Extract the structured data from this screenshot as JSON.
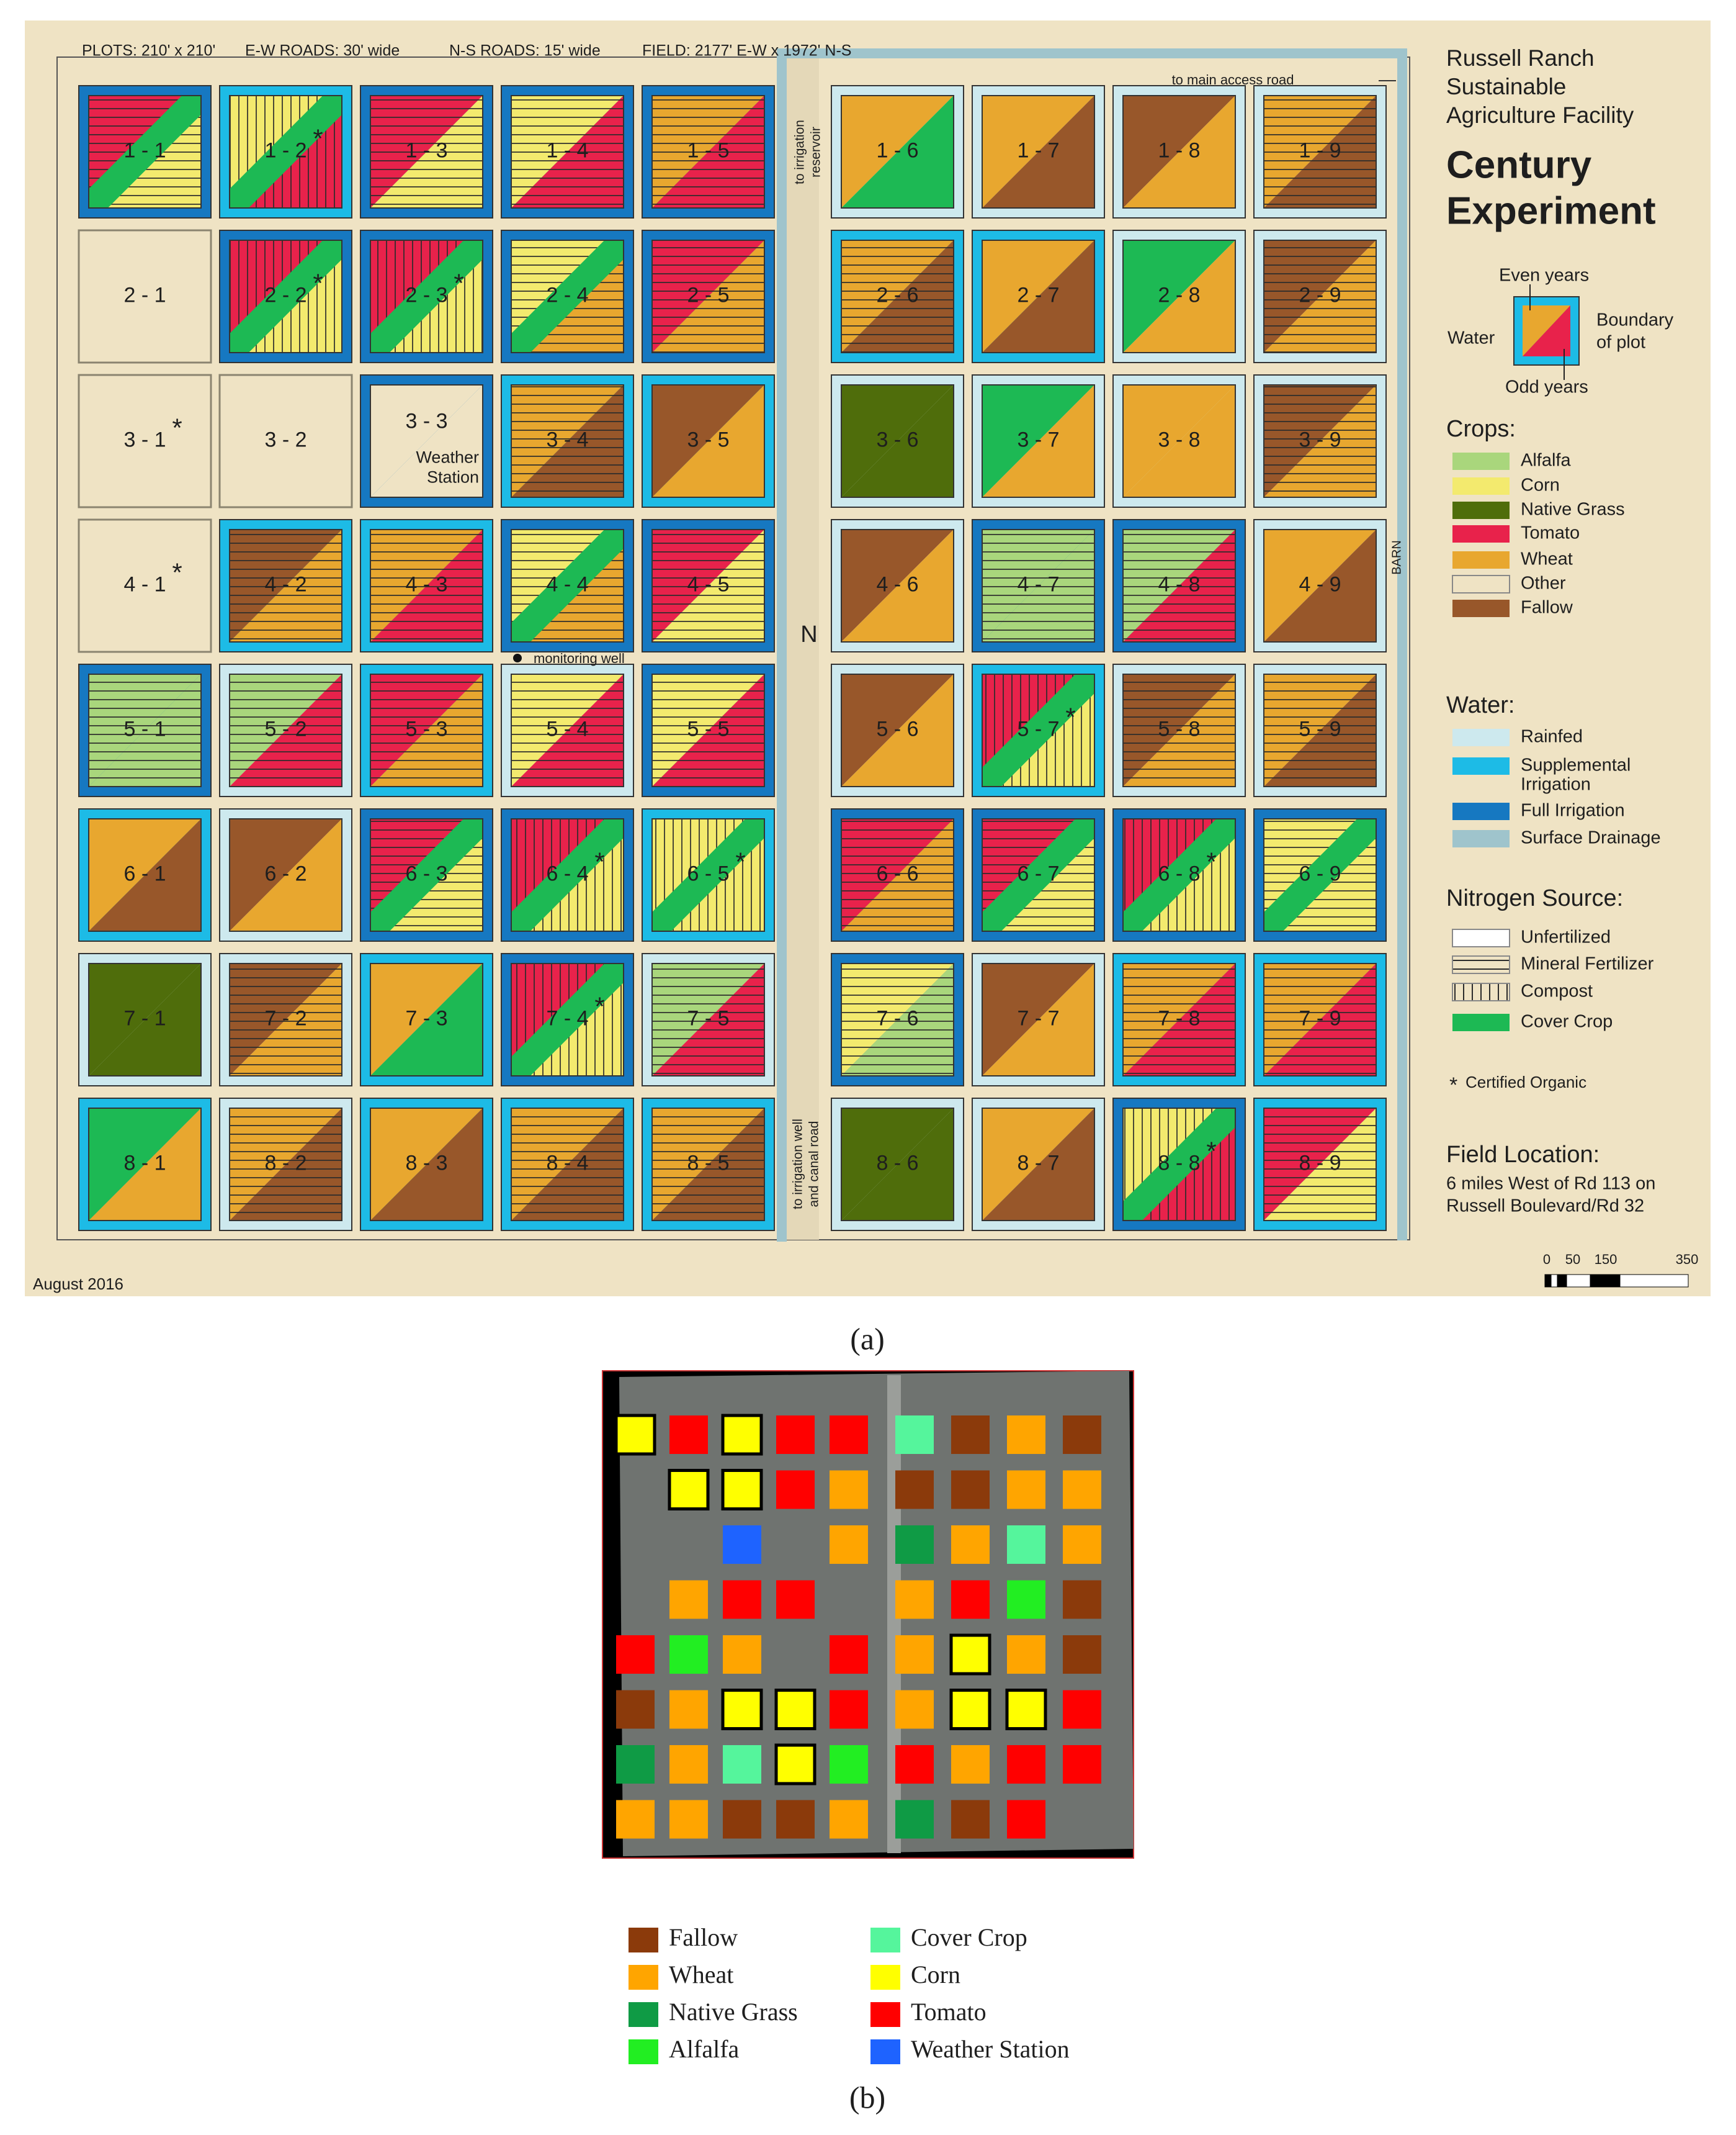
{
  "panel_a": {
    "header": [
      "PLOTS: 210' x 210'",
      "E-W ROADS: 30' wide",
      "N-S ROADS: 15' wide",
      "FIELD: 2177' E-W x 1972' N-S"
    ],
    "title": [
      "Russell Ranch",
      "Sustainable",
      "Agriculture Facility"
    ],
    "experiment": [
      "Century",
      "Experiment"
    ],
    "key": {
      "even": "Even years",
      "water": "Water",
      "boundary": [
        "Boundary",
        "of plot"
      ],
      "odd": "Odd years"
    },
    "crops": {
      "title": "Crops:",
      "items": [
        {
          "name": "Alfalfa",
          "color": "#a9d67c"
        },
        {
          "name": "Corn",
          "color": "#f3ea6e"
        },
        {
          "name": "Native Grass",
          "color": "#4f6d0b"
        },
        {
          "name": "Tomato",
          "color": "#e8224b"
        },
        {
          "name": "Wheat",
          "color": "#e8a72f"
        },
        {
          "name": "Other",
          "color": "#efe3c4"
        },
        {
          "name": "Fallow",
          "color": "#98572a"
        }
      ]
    },
    "water": {
      "title": "Water:",
      "items": [
        {
          "name": "Rainfed",
          "color": "#cde9ee"
        },
        {
          "name": [
            "Supplemental",
            "Irrigation"
          ],
          "color": "#1dbbe6"
        },
        {
          "name": "Full Irrigation",
          "color": "#1678c1"
        },
        {
          "name": "Surface Drainage",
          "color": "#9fc4cc"
        }
      ]
    },
    "nitrogen": {
      "title": "Nitrogen Source:",
      "items": [
        {
          "name": "Unfertilized",
          "color": "#ffffff"
        },
        {
          "name": "Mineral Fertilizer",
          "pattern": "horizontal"
        },
        {
          "name": "Compost",
          "pattern": "vertical"
        },
        {
          "name": "Cover Crop",
          "color": "#1db954"
        }
      ]
    },
    "organic": {
      "mark": "*",
      "text": "Certified Organic"
    },
    "location": {
      "title": "Field Location:",
      "lines": [
        "6 miles West of Rd 113 on",
        "Russell Boulevard/Rd 32"
      ]
    },
    "annotations": {
      "reservoir": [
        "to irrigation",
        "reservoir"
      ],
      "access": "to main access road",
      "north": "N",
      "well": "monitoring well",
      "barn": "BARN",
      "canal": [
        "to irrigation well",
        "and canal road"
      ],
      "date": "August 2016"
    },
    "scale": [
      0,
      50,
      150,
      350
    ],
    "plots": [
      [
        "1 - 1",
        null,
        "Tomato",
        "Corn",
        "Full Irrigation",
        "Mineral Fertilizer",
        true
      ],
      [
        "1 - 2",
        "*",
        "Corn",
        "Tomato",
        "Supplemental Irrigation",
        "Compost",
        true
      ],
      [
        "1 - 3",
        null,
        "Tomato",
        "Corn",
        "Full Irrigation",
        "Mineral Fertilizer",
        false
      ],
      [
        "1 - 4",
        null,
        "Corn",
        "Tomato",
        "Full Irrigation",
        "Mineral Fertilizer",
        false
      ],
      [
        "1 - 5",
        null,
        "Wheat",
        "Tomato",
        "Full Irrigation",
        "Mineral Fertilizer",
        false
      ],
      [
        "1 - 6",
        null,
        "Wheat",
        "Cover Crop",
        "Rainfed",
        null,
        false
      ],
      [
        "1 - 7",
        null,
        "Wheat",
        "Fallow",
        "Rainfed",
        null,
        false
      ],
      [
        "1 - 8",
        null,
        "Fallow",
        "Wheat",
        "Rainfed",
        null,
        false
      ],
      [
        "1 - 9",
        null,
        "Wheat",
        "Fallow",
        "Rainfed",
        "Mineral Fertilizer",
        false
      ],
      [
        "2 - 1",
        null,
        "Other",
        "Other",
        null,
        null,
        false
      ],
      [
        "2 - 2",
        "*",
        "Tomato",
        "Corn",
        "Full Irrigation",
        "Compost",
        true
      ],
      [
        "2 - 3",
        "*",
        "Tomato",
        "Corn",
        "Full Irrigation",
        "Compost",
        true
      ],
      [
        "2 - 4",
        null,
        "Corn",
        "Wheat",
        "Full Irrigation",
        "Mineral Fertilizer",
        true
      ],
      [
        "2 - 5",
        null,
        "Tomato",
        "Wheat",
        "Full Irrigation",
        "Mineral Fertilizer",
        false
      ],
      [
        "2 - 6",
        null,
        "Wheat",
        "Fallow",
        "Supplemental Irrigation",
        "Mineral Fertilizer",
        false
      ],
      [
        "2 - 7",
        null,
        "Wheat",
        "Fallow",
        "Supplemental Irrigation",
        null,
        false
      ],
      [
        "2 - 8",
        null,
        "Cover Crop",
        "Wheat",
        "Rainfed",
        null,
        false
      ],
      [
        "2 - 9",
        null,
        "Fallow",
        "Wheat",
        "Rainfed",
        "Mineral Fertilizer",
        false
      ],
      [
        "3 - 1",
        "*",
        "Other",
        "Other",
        null,
        null,
        false
      ],
      [
        "3 - 2",
        null,
        "Other",
        "Other",
        null,
        null,
        false
      ],
      [
        "3 - 3",
        null,
        "Other",
        "Other",
        "Full Irrigation",
        null,
        false,
        [
          "Weather",
          "Station"
        ]
      ],
      [
        "3 - 4",
        null,
        "Wheat",
        "Fallow",
        "Supplemental Irrigation",
        "Mineral Fertilizer",
        false
      ],
      [
        "3 - 5",
        null,
        "Fallow",
        "Wheat",
        "Supplemental Irrigation",
        null,
        false
      ],
      [
        "3 - 6",
        null,
        "Native Grass",
        "Native Grass",
        "Rainfed",
        null,
        false
      ],
      [
        "3 - 7",
        null,
        "Cover Crop",
        "Wheat",
        "Rainfed",
        null,
        false
      ],
      [
        "3 - 8",
        null,
        "Wheat",
        "Wheat",
        "Rainfed",
        null,
        false
      ],
      [
        "3 - 9",
        null,
        "Fallow",
        "Wheat",
        "Rainfed",
        "Mineral Fertilizer",
        false
      ],
      [
        "4 - 1",
        "*",
        "Other",
        "Other",
        null,
        null,
        false
      ],
      [
        "4 - 2",
        null,
        "Fallow",
        "Wheat",
        "Supplemental Irrigation",
        "Mineral Fertilizer",
        false
      ],
      [
        "4 - 3",
        null,
        "Wheat",
        "Tomato",
        "Supplemental Irrigation",
        "Mineral Fertilizer",
        false
      ],
      [
        "4 - 4",
        null,
        "Corn",
        "Wheat",
        "Full Irrigation",
        "Mineral Fertilizer",
        true
      ],
      [
        "4 - 5",
        null,
        "Tomato",
        "Corn",
        "Full Irrigation",
        "Mineral Fertilizer",
        false
      ],
      [
        "4 - 6",
        null,
        "Fallow",
        "Wheat",
        "Rainfed",
        null,
        false
      ],
      [
        "4 - 7",
        null,
        "Alfalfa",
        "Alfalfa",
        "Full Irrigation",
        "Mineral Fertilizer",
        false
      ],
      [
        "4 - 8",
        null,
        "Alfalfa",
        "Tomato",
        "Full Irrigation",
        "Mineral Fertilizer",
        false
      ],
      [
        "4 - 9",
        null,
        "Wheat",
        "Fallow",
        "Rainfed",
        null,
        false
      ],
      [
        "5 - 1",
        null,
        "Alfalfa",
        "Alfalfa",
        "Full Irrigation",
        "Mineral Fertilizer",
        false
      ],
      [
        "5 - 2",
        null,
        "Alfalfa",
        "Tomato",
        "Rainfed",
        "Mineral Fertilizer",
        false
      ],
      [
        "5 - 3",
        null,
        "Tomato",
        "Wheat",
        "Supplemental Irrigation",
        "Mineral Fertilizer",
        false
      ],
      [
        "5 - 4",
        null,
        "Corn",
        "Tomato",
        "Rainfed",
        "Mineral Fertilizer",
        false
      ],
      [
        "5 - 5",
        null,
        "Corn",
        "Tomato",
        "Full Irrigation",
        "Mineral Fertilizer",
        false
      ],
      [
        "5 - 6",
        null,
        "Fallow",
        "Wheat",
        "Rainfed",
        null,
        false
      ],
      [
        "5 - 7",
        "*",
        "Tomato",
        "Corn",
        "Supplemental Irrigation",
        "Compost",
        true
      ],
      [
        "5 - 8",
        null,
        "Fallow",
        "Wheat",
        "Rainfed",
        "Mineral Fertilizer",
        false
      ],
      [
        "5 - 9",
        null,
        "Wheat",
        "Fallow",
        "Rainfed",
        "Mineral Fertilizer",
        false
      ],
      [
        "6 - 1",
        null,
        "Wheat",
        "Fallow",
        "Supplemental Irrigation",
        null,
        false
      ],
      [
        "6 - 2",
        null,
        "Fallow",
        "Wheat",
        "Rainfed",
        null,
        false
      ],
      [
        "6 - 3",
        null,
        "Tomato",
        "Corn",
        "Full Irrigation",
        "Mineral Fertilizer",
        true
      ],
      [
        "6 - 4",
        "*",
        "Tomato",
        "Corn",
        "Full Irrigation",
        "Compost",
        true
      ],
      [
        "6 - 5",
        "*",
        "Corn",
        "Corn",
        "Supplemental Irrigation",
        "Compost",
        true
      ],
      [
        "6 - 6",
        null,
        "Tomato",
        "Wheat",
        "Full Irrigation",
        "Mineral Fertilizer",
        false
      ],
      [
        "6 - 7",
        null,
        "Tomato",
        "Corn",
        "Full Irrigation",
        "Mineral Fertilizer",
        true
      ],
      [
        "6 - 8",
        "*",
        "Tomato",
        "Corn",
        "Full Irrigation",
        "Compost",
        true
      ],
      [
        "6 - 9",
        null,
        "Corn",
        "Corn",
        "Full Irrigation",
        "Mineral Fertilizer",
        true
      ],
      [
        "7 - 1",
        null,
        "Native Grass",
        "Native Grass",
        "Rainfed",
        null,
        false
      ],
      [
        "7 - 2",
        null,
        "Fallow",
        "Wheat",
        "Rainfed",
        "Mineral Fertilizer",
        false
      ],
      [
        "7 - 3",
        null,
        "Wheat",
        "Cover Crop",
        "Supplemental Irrigation",
        null,
        false
      ],
      [
        "7 - 4",
        "*",
        "Tomato",
        "Corn",
        "Full Irrigation",
        "Compost",
        true
      ],
      [
        "7 - 5",
        null,
        "Alfalfa",
        "Tomato",
        "Rainfed",
        "Mineral Fertilizer",
        false
      ],
      [
        "7 - 6",
        null,
        "Corn",
        "Alfalfa",
        "Full Irrigation",
        "Mineral Fertilizer",
        false
      ],
      [
        "7 - 7",
        null,
        "Fallow",
        "Wheat",
        "Rainfed",
        null,
        false
      ],
      [
        "7 - 8",
        null,
        "Wheat",
        "Tomato",
        "Supplemental Irrigation",
        "Mineral Fertilizer",
        false
      ],
      [
        "7 - 9",
        null,
        "Wheat",
        "Tomato",
        "Supplemental Irrigation",
        "Mineral Fertilizer",
        false
      ],
      [
        "8 - 1",
        null,
        "Cover Crop",
        "Wheat",
        "Supplemental Irrigation",
        null,
        false
      ],
      [
        "8 - 2",
        null,
        "Wheat",
        "Fallow",
        "Rainfed",
        "Mineral Fertilizer",
        false
      ],
      [
        "8 - 3",
        null,
        "Wheat",
        "Fallow",
        "Supplemental Irrigation",
        null,
        false
      ],
      [
        "8 - 4",
        null,
        "Wheat",
        "Fallow",
        "Supplemental Irrigation",
        "Mineral Fertilizer",
        false
      ],
      [
        "8 - 5",
        null,
        "Wheat",
        "Fallow",
        "Supplemental Irrigation",
        "Mineral Fertilizer",
        false
      ],
      [
        "8 - 6",
        null,
        "Native Grass",
        "Native Grass",
        "Rainfed",
        null,
        false
      ],
      [
        "8 - 7",
        null,
        "Wheat",
        "Fallow",
        "Rainfed",
        null,
        false
      ],
      [
        "8 - 8",
        "*",
        "Corn",
        "Tomato",
        "Full Irrigation",
        "Compost",
        true
      ],
      [
        "8 - 9",
        null,
        "Tomato",
        "Corn",
        "Supplemental Irrigation",
        "Mineral Fertilizer",
        false
      ]
    ]
  },
  "caption_a": "(a)",
  "panel_b": {
    "legend": [
      {
        "name": "Fallow",
        "color": "#8b3a0b"
      },
      {
        "name": "Wheat",
        "color": "#ffa500"
      },
      {
        "name": "Native Grass",
        "color": "#0f9b45"
      },
      {
        "name": "Alfalfa",
        "color": "#22ee22"
      },
      {
        "name": "Cover Crop",
        "color": "#55f59c"
      },
      {
        "name": "Corn",
        "color": "#ffff00"
      },
      {
        "name": "Tomato",
        "color": "#ff0000"
      },
      {
        "name": "Weather Station",
        "color": "#1e63ff"
      }
    ],
    "rows": [
      [
        "Corn",
        "Tomato",
        "Corn",
        "Tomato",
        "Tomato",
        "Cover Crop",
        "Fallow",
        "Wheat",
        "Fallow"
      ],
      [
        null,
        "Corn",
        "Corn",
        "Tomato",
        "Wheat",
        "Fallow",
        "Fallow",
        "Wheat",
        "Wheat"
      ],
      [
        null,
        null,
        "Weather Station",
        null,
        "Wheat",
        "Native Grass",
        "Wheat",
        "Cover Crop",
        "Wheat"
      ],
      [
        null,
        "Wheat",
        "Tomato",
        "Tomato",
        null,
        "Wheat",
        "Tomato",
        "Alfalfa",
        "Fallow"
      ],
      [
        "Tomato",
        "Alfalfa",
        "Wheat",
        null,
        "Tomato",
        "Wheat",
        "Corn",
        "Wheat",
        "Fallow"
      ],
      [
        "Fallow",
        "Wheat",
        "Corn",
        "Corn",
        "Tomato",
        "Wheat",
        "Corn",
        "Corn",
        "Tomato"
      ],
      [
        "Native Grass",
        "Wheat",
        "Cover Crop",
        "Corn",
        "Alfalfa",
        "Tomato",
        "Wheat",
        "Tomato",
        "Tomato"
      ],
      [
        "Wheat",
        "Wheat",
        "Fallow",
        "Fallow",
        "Wheat",
        "Native Grass",
        "Fallow",
        "Tomato",
        null
      ]
    ]
  },
  "caption_b": "(b)"
}
